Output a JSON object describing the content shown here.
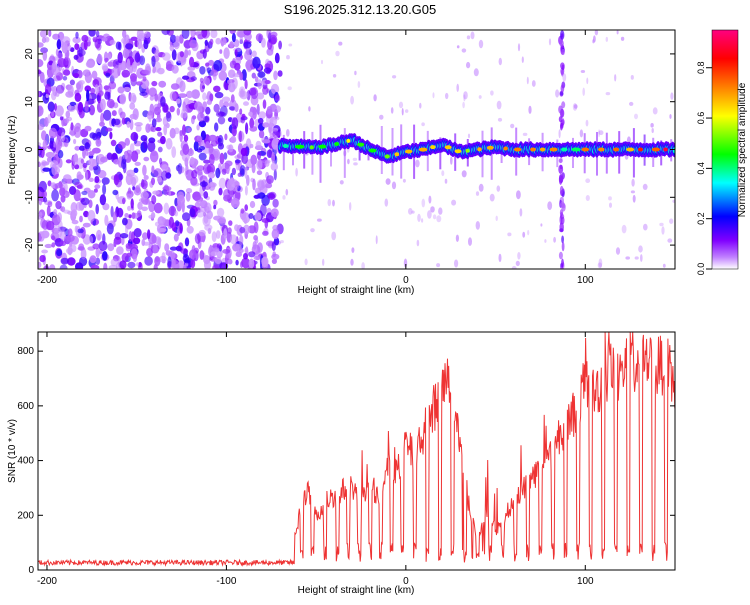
{
  "title": "S196.2025.312.13.20.G05",
  "chart_data": [
    {
      "type": "heatmap",
      "xlabel": "Height of straight line (km)",
      "ylabel": "Frequency (Hz)",
      "xlim": [
        -205,
        150
      ],
      "ylim": [
        -25,
        25
      ],
      "xticks": [
        -200,
        -100,
        0,
        100
      ],
      "yticks": [
        -20,
        -10,
        0,
        10,
        20
      ],
      "colorbar": {
        "label": "Normalized spectral amplitude",
        "range": [
          0,
          0.95
        ],
        "ticks": [
          0,
          0.2,
          0.4,
          0.6,
          0.8
        ],
        "tick_labels": [
          "0.0",
          "0.2",
          "0.4",
          "0.6",
          "0.8"
        ],
        "colors": [
          "#ffffff",
          "#8000ff",
          "#0000ff",
          "#00ffff",
          "#00ff00",
          "#ffff00",
          "#ff8000",
          "#ff0000",
          "#ff0080"
        ]
      },
      "noise_region_x": [
        -205,
        -70
      ],
      "signal_track": {
        "x": [
          -70,
          -60,
          -50,
          -40,
          -30,
          -20,
          -10,
          0,
          10,
          20,
          30,
          40,
          50,
          60,
          70,
          80,
          90,
          100,
          110,
          120,
          130,
          140,
          150
        ],
        "freq": [
          0.8,
          0.6,
          0.4,
          1.0,
          2.0,
          0.0,
          -1.5,
          -0.5,
          0.0,
          1.0,
          -0.5,
          0.0,
          0.5,
          0.0,
          0.0,
          0.0,
          0.0,
          0.0,
          0.0,
          0.0,
          0.0,
          0.0,
          0.0
        ],
        "amplitude": [
          0.45,
          0.5,
          0.55,
          0.6,
          0.6,
          0.55,
          0.6,
          0.75,
          0.7,
          0.75,
          0.65,
          0.7,
          0.75,
          0.7,
          0.8,
          0.85,
          0.3,
          0.8,
          0.85,
          0.85,
          0.9,
          0.9,
          0.85
        ]
      },
      "vertical_stripe_x": 87
    },
    {
      "type": "line",
      "xlabel": "Height of straight line (km)",
      "ylabel": "SNR (10 * v/v)",
      "xlim": [
        -205,
        150
      ],
      "ylim": [
        0,
        870
      ],
      "xticks": [
        -200,
        -100,
        0,
        100
      ],
      "yticks": [
        0,
        200,
        400,
        600,
        800
      ],
      "color": "#ee3333",
      "series": [
        {
          "name": "SNR",
          "x": [
            -205,
            -150,
            -100,
            -70,
            -62,
            -58,
            -55,
            -50,
            -45,
            -40,
            -35,
            -30,
            -25,
            -20,
            -15,
            -10,
            -5,
            0,
            5,
            10,
            15,
            20,
            25,
            30,
            35,
            40,
            45,
            50,
            55,
            60,
            65,
            70,
            75,
            80,
            85,
            90,
            95,
            100,
            105,
            110,
            115,
            120,
            125,
            130,
            135,
            140,
            145,
            150
          ],
          "values": [
            25,
            25,
            25,
            25,
            120,
            250,
            300,
            200,
            260,
            280,
            300,
            320,
            250,
            320,
            280,
            400,
            360,
            480,
            420,
            500,
            600,
            680,
            720,
            500,
            250,
            120,
            220,
            150,
            200,
            260,
            300,
            350,
            380,
            420,
            500,
            560,
            600,
            700,
            660,
            720,
            760,
            740,
            800,
            780,
            820,
            760,
            790,
            680
          ]
        }
      ],
      "dropouts": [
        -58,
        -52,
        -45,
        -38,
        -32,
        -26,
        -20,
        -14,
        -8,
        -2,
        5,
        12,
        19,
        26,
        33,
        40,
        47,
        54,
        61,
        68,
        75,
        82,
        89,
        96,
        103,
        110,
        117,
        124,
        131,
        138,
        145
      ]
    }
  ]
}
